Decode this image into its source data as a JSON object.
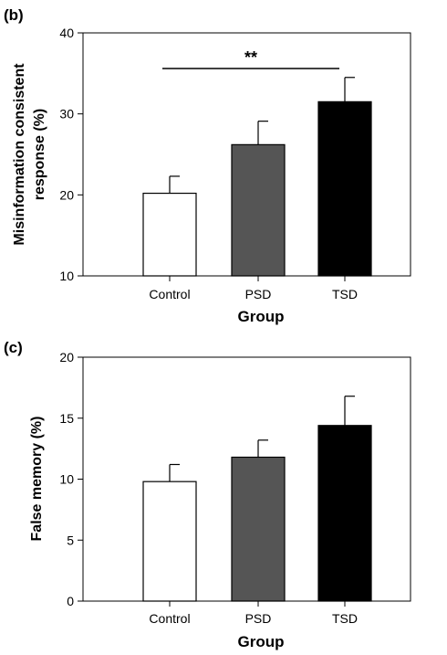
{
  "chart_data": [
    {
      "panel_label": "(b)",
      "type": "bar",
      "categories": [
        "Control",
        "PSD",
        "TSD"
      ],
      "values": [
        20.2,
        26.2,
        31.5
      ],
      "errors": [
        2.1,
        2.9,
        3.0
      ],
      "bar_colors": [
        "#ffffff",
        "#555555",
        "#000000"
      ],
      "ylabel_lines": [
        "Misinformation consistent",
        "response (%)"
      ],
      "xlabel": "Group",
      "ylim": [
        10,
        40
      ],
      "yticks": [
        "10",
        "20",
        "30",
        "40"
      ],
      "significance": {
        "from": "Control",
        "to": "TSD",
        "label": "**",
        "y": 35.6
      }
    },
    {
      "panel_label": "(c)",
      "type": "bar",
      "categories": [
        "Control",
        "PSD",
        "TSD"
      ],
      "values": [
        9.8,
        11.8,
        14.4
      ],
      "errors": [
        1.4,
        1.4,
        2.4
      ],
      "bar_colors": [
        "#ffffff",
        "#555555",
        "#000000"
      ],
      "ylabel_lines": [
        "False memory (%)"
      ],
      "xlabel": "Group",
      "ylim": [
        0,
        20
      ],
      "yticks": [
        "0",
        "5",
        "10",
        "15",
        "20"
      ]
    }
  ]
}
